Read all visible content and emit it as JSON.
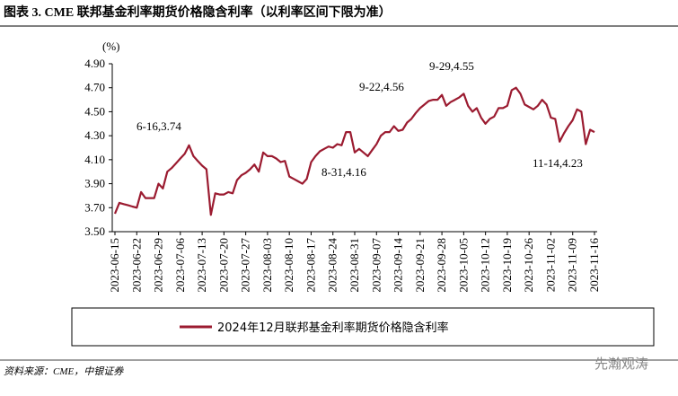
{
  "chart_data": {
    "type": "line",
    "title": "图表 3. CME 联邦基金利率期货价格隐含利率（以利率区间下限为准）",
    "y_label": "(%)",
    "source": "资料来源：CME，中银证券",
    "watermark": "先瀚观涛",
    "categories": [
      "2023-06-15",
      null,
      null,
      null,
      null,
      "2023-06-22",
      null,
      null,
      null,
      null,
      "2023-06-29",
      null,
      null,
      null,
      null,
      "2023-07-06",
      null,
      null,
      null,
      null,
      "2023-07-13",
      null,
      null,
      null,
      null,
      "2023-07-20",
      null,
      null,
      null,
      null,
      "2023-07-27",
      null,
      null,
      null,
      null,
      "2023-08-03",
      null,
      null,
      null,
      null,
      "2023-08-10",
      null,
      null,
      null,
      null,
      "2023-08-17",
      null,
      null,
      null,
      null,
      "2023-08-24",
      null,
      null,
      null,
      null,
      "2023-08-31",
      null,
      null,
      null,
      null,
      "2023-09-07",
      null,
      null,
      null,
      null,
      "2023-09-14",
      null,
      null,
      null,
      null,
      "2023-09-21",
      null,
      null,
      null,
      null,
      "2023-09-28",
      null,
      null,
      null,
      null,
      "2023-10-05",
      null,
      null,
      null,
      null,
      "2023-10-12",
      null,
      null,
      null,
      null,
      "2023-10-19",
      null,
      null,
      null,
      null,
      "2023-10-26",
      null,
      null,
      null,
      null,
      "2023-11-02",
      null,
      null,
      null,
      null,
      "2023-11-09",
      null,
      null,
      null,
      null,
      "2023-11-16"
    ],
    "series": [
      {
        "name": "2024年12月联邦基金利率期货价格隐含利率",
        "color": "#9b1b30",
        "values": [
          3.65,
          3.74,
          3.73,
          3.72,
          3.71,
          3.7,
          3.83,
          3.78,
          3.78,
          3.78,
          3.9,
          3.86,
          4.0,
          4.03,
          4.07,
          4.11,
          4.15,
          4.22,
          4.13,
          4.09,
          4.05,
          4.02,
          3.64,
          3.82,
          3.81,
          3.81,
          3.83,
          3.82,
          3.93,
          3.97,
          3.99,
          4.02,
          4.06,
          4.0,
          4.16,
          4.13,
          4.13,
          4.11,
          4.08,
          4.09,
          3.96,
          3.94,
          3.92,
          3.9,
          3.94,
          4.08,
          4.13,
          4.17,
          4.19,
          4.21,
          4.2,
          4.23,
          4.22,
          4.33,
          4.33,
          4.16,
          4.19,
          4.16,
          4.13,
          4.18,
          4.23,
          4.3,
          4.33,
          4.33,
          4.38,
          4.34,
          4.35,
          4.41,
          4.44,
          4.49,
          4.53,
          4.56,
          4.59,
          4.6,
          4.6,
          4.64,
          4.55,
          4.58,
          4.6,
          4.62,
          4.65,
          4.55,
          4.5,
          4.53,
          4.45,
          4.4,
          4.44,
          4.46,
          4.53,
          4.53,
          4.55,
          4.68,
          4.7,
          4.65,
          4.56,
          4.54,
          4.52,
          4.55,
          4.6,
          4.56,
          4.45,
          4.44,
          4.25,
          4.32,
          4.38,
          4.43,
          4.52,
          4.5,
          4.23,
          4.35,
          4.33
        ]
      }
    ],
    "ylim": [
      3.5,
      4.9
    ],
    "yticks": [
      {
        "value": 3.5,
        "label": "3.50"
      },
      {
        "value": 3.7,
        "label": "3.70"
      },
      {
        "value": 3.9,
        "label": "3.90"
      },
      {
        "value": 4.1,
        "label": "4.10"
      },
      {
        "value": 4.3,
        "label": "4.30"
      },
      {
        "value": 4.5,
        "label": "4.50"
      },
      {
        "value": 4.7,
        "label": "4.70"
      },
      {
        "value": 4.9,
        "label": "4.90"
      }
    ],
    "annotations": [
      "6-16,3.74",
      "8-31,4.16",
      "9-22,4.56",
      "9-29,4.55",
      "11-14,4.23"
    ]
  }
}
